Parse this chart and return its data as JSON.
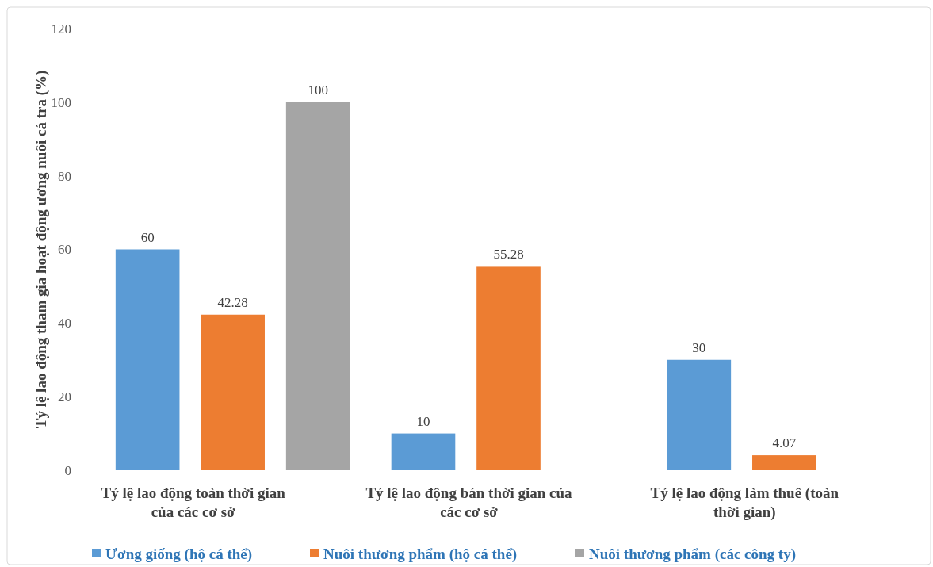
{
  "chart_data": {
    "type": "bar",
    "ylabel": "Tỷ lệ lao động tham gia hoạt động ương nuôi cá tra (%)",
    "categories": [
      "Tỷ lệ lao động toàn thời gian của các cơ sở",
      "Tỷ lệ lao động bán thời gian của các cơ sở",
      "Tỷ lệ lao động làm thuê (toàn thời gian)"
    ],
    "series": [
      {
        "name": "Ương giống (hộ cá thể)",
        "color": "#5b9bd5",
        "values": [
          60,
          10,
          30
        ]
      },
      {
        "name": "Nuôi thương phẩm (hộ cá thể)",
        "color": "#ed7d31",
        "values": [
          42.28,
          55.28,
          4.07
        ]
      },
      {
        "name": "Nuôi thương phẩm (các công ty)",
        "color": "#a5a5a5",
        "values": [
          100,
          null,
          null
        ]
      }
    ],
    "ylim": [
      0,
      120
    ],
    "yticks": [
      0,
      20,
      40,
      60,
      80,
      100,
      120
    ],
    "grid": false,
    "legend": "bottom",
    "data_labels": true
  }
}
